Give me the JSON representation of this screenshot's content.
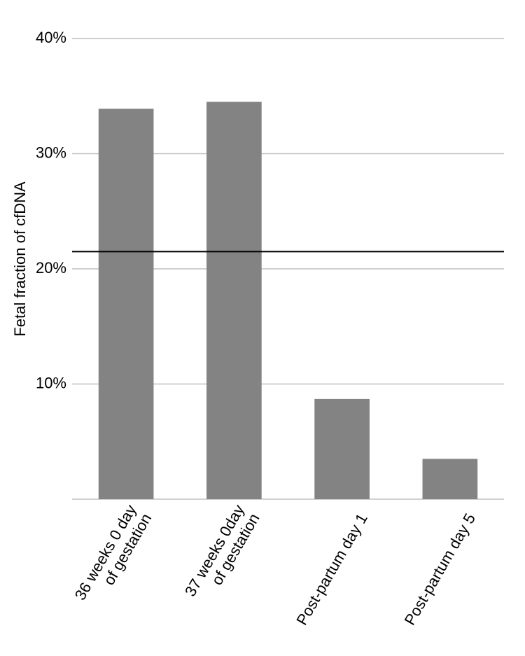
{
  "chart_data": {
    "type": "bar",
    "y_label": "Fetal fraction of cfDNA",
    "categories": [
      [
        "36 weeks 0 day",
        "of gestation"
      ],
      [
        "37 weeks 0day",
        "of gestation"
      ],
      [
        "Post-partum day 1"
      ],
      [
        "Post-partum day 5"
      ]
    ],
    "values": [
      33.9,
      34.5,
      8.7,
      3.5
    ],
    "color": "#838383",
    "reference_line": 21.5,
    "ylim": [
      0,
      40
    ],
    "yticks": [
      {
        "value": 10,
        "label": "10%"
      },
      {
        "value": 20,
        "label": "20%"
      },
      {
        "value": 30,
        "label": "30%"
      },
      {
        "value": 40,
        "label": "40%"
      }
    ],
    "grid": true
  }
}
